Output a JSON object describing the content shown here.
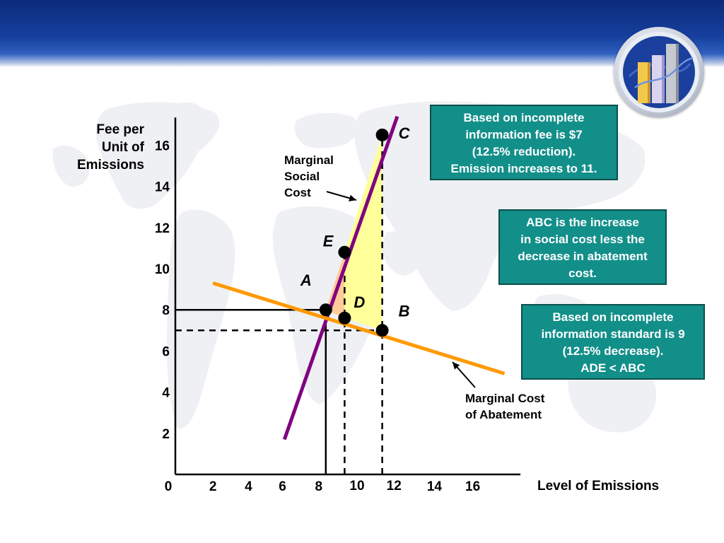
{
  "chart_data": {
    "type": "line",
    "ylabel": [
      "Fee per",
      "Unit of",
      "Emissions"
    ],
    "xlabel": "Level of Emissions",
    "x_ticks": [
      {
        "value": 0,
        "label": "0"
      },
      {
        "value": 2,
        "label": "2"
      },
      {
        "value": 4,
        "label": "4"
      },
      {
        "value": 6,
        "label": "6"
      },
      {
        "value": 8,
        "label": "8"
      },
      {
        "value": 10,
        "label": "10"
      },
      {
        "value": 12,
        "label": "12"
      },
      {
        "value": 14,
        "label": "14"
      },
      {
        "value": 16,
        "label": "16"
      }
    ],
    "y_ticks": [
      {
        "value": 2,
        "label": "2"
      },
      {
        "value": 4,
        "label": "4"
      },
      {
        "value": 6,
        "label": "6"
      },
      {
        "value": 8,
        "label": "8"
      },
      {
        "value": 10,
        "label": "10"
      },
      {
        "value": 12,
        "label": "12"
      },
      {
        "value": 14,
        "label": "14"
      },
      {
        "value": 16,
        "label": "16"
      }
    ],
    "xlim": [
      0,
      18.5
    ],
    "ylim": [
      0,
      17
    ],
    "grid": false,
    "series": [
      {
        "name": [
          "Marginal",
          "Social",
          "Cost"
        ],
        "color": "#800080",
        "points": [
          [
            5.8,
            1.7
          ],
          [
            11.8,
            17.4
          ]
        ]
      },
      {
        "name": [
          "Marginal Cost",
          "of Abatement"
        ],
        "color": "#ff9900",
        "points": [
          [
            2,
            9.3
          ],
          [
            17.5,
            4.9
          ]
        ]
      }
    ],
    "points": [
      {
        "label": "A",
        "x": 8,
        "y": 8
      },
      {
        "label": "E",
        "x": 9,
        "y": 10.8
      },
      {
        "label": "D",
        "x": 9,
        "y": 7.6
      },
      {
        "label": "C",
        "x": 11,
        "y": 16.5
      },
      {
        "label": "B",
        "x": 11,
        "y": 7
      }
    ],
    "reference_lines": [
      {
        "kind": "solid",
        "x": 8,
        "y": 8
      },
      {
        "kind": "dashed",
        "x": 9
      },
      {
        "kind": "dashed",
        "x": 11,
        "y": 7
      }
    ],
    "shaded_regions": [
      {
        "vertices": [
          "A",
          "E",
          "D"
        ],
        "color": "#ffcc99"
      },
      {
        "vertices": [
          "E",
          "C",
          "B",
          "D"
        ],
        "color": "#ffff99"
      }
    ],
    "annotations": [
      {
        "lines": [
          "Based on incomplete",
          "information fee is $7",
          "(12.5% reduction).",
          "Emission increases to 11."
        ]
      },
      {
        "lines": [
          "ABC is the increase",
          "in social cost less the",
          "decrease in abatement",
          "cost."
        ]
      },
      {
        "lines": [
          "Based on incomplete",
          "information standard is 9",
          "(12.5% decrease).",
          "ADE < ABC"
        ]
      }
    ]
  },
  "colors": {
    "header": "#16409e",
    "note_fill": "#138f8a",
    "mcc": "#ff9900",
    "msc": "#800080"
  },
  "icons": {
    "logo": "bar-chart-globe-icon",
    "background": "world-map-icon"
  }
}
